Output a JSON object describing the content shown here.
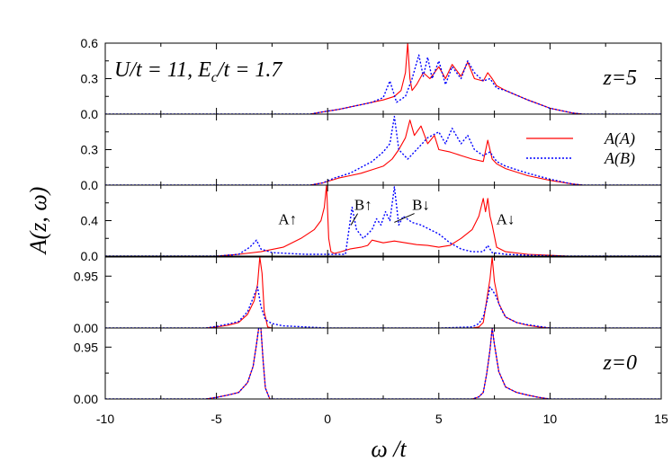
{
  "chart_data": {
    "type": "line",
    "xlabel": "ω /t",
    "ylabel": "A(z, ω)",
    "xlim": [
      -10,
      15
    ],
    "x_ticks": [
      -10,
      -5,
      0,
      5,
      10,
      15
    ],
    "x_tick_labels": [
      "-10",
      "-5",
      "0",
      "5",
      "10",
      "15"
    ],
    "annotation_params": "U/t = 11, E",
    "annotation_params_sub": "c",
    "annotation_params_tail": "/t = 1.7",
    "legend": {
      "placement": "top-right of second panel",
      "entries": [
        {
          "label": "A(A)",
          "color": "#ff0000",
          "style": "solid"
        },
        {
          "label": "A(B)",
          "color": "#0000ff",
          "style": "dotted"
        }
      ]
    },
    "panels": [
      {
        "id": "z5",
        "label": "z=5",
        "ylim": [
          0,
          0.6
        ],
        "y_ticks": [
          0.0,
          0.3,
          0.6
        ],
        "y_tick_labels": [
          "0.0",
          "0.3",
          "0.6"
        ],
        "series": [
          {
            "name": "A(A)",
            "color": "#ff0000",
            "x": [
              -10,
              -0.8,
              -0.2,
              0.5,
              1,
              1.5,
              2,
              2.5,
              3,
              3.3,
              3.5,
              3.6,
              3.7,
              3.8,
              4,
              4.3,
              4.6,
              5,
              5.3,
              5.6,
              6,
              6.3,
              6.6,
              7,
              7.2,
              7.4,
              7.6,
              8,
              9,
              10,
              11,
              11.5,
              15
            ],
            "y": [
              0,
              0,
              0.02,
              0.04,
              0.06,
              0.08,
              0.1,
              0.12,
              0.15,
              0.2,
              0.35,
              0.6,
              0.3,
              0.2,
              0.25,
              0.35,
              0.3,
              0.4,
              0.3,
              0.42,
              0.32,
              0.44,
              0.3,
              0.28,
              0.35,
              0.3,
              0.24,
              0.2,
              0.12,
              0.05,
              0.01,
              0,
              0
            ]
          },
          {
            "name": "A(B)",
            "color": "#0000ff",
            "x": [
              -10,
              -0.8,
              -0.2,
              0.5,
              1,
              1.5,
              2,
              2.5,
              2.8,
              3.1,
              3.5,
              3.8,
              4.1,
              4.3,
              4.5,
              4.7,
              5,
              5.3,
              5.6,
              6,
              6.3,
              6.6,
              7,
              7.3,
              7.6,
              8,
              9,
              10,
              11,
              11.5,
              15
            ],
            "y": [
              0,
              0,
              0.02,
              0.04,
              0.06,
              0.08,
              0.1,
              0.14,
              0.28,
              0.1,
              0.15,
              0.3,
              0.5,
              0.32,
              0.48,
              0.3,
              0.45,
              0.25,
              0.4,
              0.3,
              0.45,
              0.35,
              0.28,
              0.3,
              0.22,
              0.2,
              0.12,
              0.05,
              0.01,
              0,
              0
            ]
          }
        ]
      },
      {
        "id": "z4",
        "label": "",
        "ylim": [
          0,
          0.6
        ],
        "y_ticks": [
          0.0,
          0.3
        ],
        "y_tick_labels": [
          "0.0",
          "0.3"
        ],
        "series": [
          {
            "name": "A(A)",
            "color": "#ff0000",
            "x": [
              -10,
              -0.8,
              -0.2,
              0.5,
              1,
              1.5,
              2,
              2.5,
              2.9,
              3.2,
              3.5,
              3.7,
              3.9,
              4.2,
              4.5,
              4.8,
              5,
              5.5,
              6,
              6.5,
              7,
              7.2,
              7.4,
              7.6,
              8,
              9,
              10,
              11,
              11.5,
              15
            ],
            "y": [
              0,
              0,
              0.02,
              0.06,
              0.08,
              0.1,
              0.13,
              0.16,
              0.22,
              0.3,
              0.4,
              0.55,
              0.42,
              0.5,
              0.35,
              0.42,
              0.3,
              0.28,
              0.25,
              0.22,
              0.2,
              0.38,
              0.22,
              0.18,
              0.14,
              0.08,
              0.04,
              0.01,
              0,
              0
            ]
          },
          {
            "name": "A(B)",
            "color": "#0000ff",
            "x": [
              -10,
              -0.8,
              -0.2,
              0.3,
              1,
              1.5,
              2,
              2.5,
              2.8,
              3,
              3.2,
              3.6,
              4,
              4.5,
              5,
              5.3,
              5.6,
              6,
              6.3,
              6.6,
              7,
              7.3,
              7.6,
              8,
              9,
              10,
              11,
              11.5,
              15
            ],
            "y": [
              0,
              0,
              0.02,
              0.06,
              0.1,
              0.15,
              0.2,
              0.28,
              0.35,
              0.58,
              0.3,
              0.22,
              0.3,
              0.4,
              0.45,
              0.35,
              0.48,
              0.35,
              0.42,
              0.3,
              0.25,
              0.28,
              0.2,
              0.16,
              0.1,
              0.05,
              0.01,
              0,
              0
            ]
          }
        ]
      },
      {
        "id": "z2",
        "label": "",
        "ylim": [
          0,
          0.8
        ],
        "y_ticks": [
          0.0,
          0.4
        ],
        "y_tick_labels": [
          "0.0",
          "0.4"
        ],
        "annotations": [
          {
            "text": "A↑",
            "x": -1.8,
            "y": 0.42
          },
          {
            "text": "B↑",
            "x": 1.6,
            "y": 0.58
          },
          {
            "text": "B↓",
            "x": 4.2,
            "y": 0.58
          },
          {
            "text": "A↓",
            "x": 8.0,
            "y": 0.42
          }
        ],
        "series": [
          {
            "name": "A(A)",
            "color": "#ff0000",
            "x": [
              -10,
              -5,
              -4,
              -3,
              -2,
              -1.2,
              -0.6,
              -0.3,
              -0.15,
              -0.05,
              0.05,
              0.15,
              0.3,
              0.6,
              1,
              1.5,
              1.8,
              2,
              2.5,
              3,
              3.5,
              4,
              4.5,
              5,
              5.5,
              6,
              6.5,
              6.8,
              7,
              7.1,
              7.2,
              7.3,
              7.4,
              7.6,
              8,
              9,
              10,
              10.8,
              15
            ],
            "y": [
              0,
              0,
              0.02,
              0.05,
              0.1,
              0.2,
              0.3,
              0.4,
              0.55,
              0.8,
              0.2,
              0.05,
              0.03,
              0.05,
              0.08,
              0.1,
              0.12,
              0.18,
              0.15,
              0.17,
              0.15,
              0.13,
              0.12,
              0.1,
              0.12,
              0.2,
              0.3,
              0.45,
              0.65,
              0.5,
              0.65,
              0.45,
              0.35,
              0.1,
              0.05,
              0.02,
              0.01,
              0,
              0
            ]
          },
          {
            "name": "A(B)",
            "color": "#0000ff",
            "x": [
              -10,
              -5,
              -4,
              -3.5,
              -3.2,
              -3,
              -2.5,
              -1,
              0.8,
              1.1,
              1.3,
              1.6,
              2,
              2.2,
              2.4,
              2.6,
              2.8,
              3,
              3.2,
              3.4,
              3.8,
              4.2,
              4.6,
              5,
              5.5,
              6,
              6.5,
              7,
              7.2,
              7.4,
              8,
              9,
              10,
              10.8,
              15
            ],
            "y": [
              0,
              0,
              0.02,
              0.1,
              0.18,
              0.08,
              0.04,
              0.02,
              0.02,
              0.55,
              0.3,
              0.2,
              0.3,
              0.42,
              0.35,
              0.5,
              0.4,
              0.78,
              0.35,
              0.45,
              0.38,
              0.35,
              0.3,
              0.25,
              0.15,
              0.08,
              0.05,
              0.05,
              0.12,
              0.04,
              0.02,
              0.01,
              0.005,
              0,
              0
            ]
          }
        ]
      },
      {
        "id": "z1",
        "label": "",
        "ylim": [
          0,
          1.3
        ],
        "y_ticks": [
          0.0,
          0.95
        ],
        "y_tick_labels": [
          "0.00",
          "0.95"
        ],
        "series": [
          {
            "name": "A(A)",
            "color": "#ff0000",
            "x": [
              -10,
              -5.5,
              -5,
              -4.5,
              -4,
              -3.6,
              -3.3,
              -3.15,
              -3.05,
              -2.95,
              -2.85,
              -2.7,
              -2.5,
              0,
              5,
              6.5,
              6.8,
              7,
              7.15,
              7.3,
              7.4,
              7.5,
              7.7,
              8,
              8.5,
              9,
              9.5,
              10,
              15
            ],
            "y": [
              0,
              0,
              0.02,
              0.05,
              0.1,
              0.25,
              0.5,
              0.8,
              1.3,
              1.0,
              0.3,
              0.02,
              0,
              0,
              0,
              0,
              0.02,
              0.1,
              0.5,
              0.9,
              1.3,
              0.85,
              0.45,
              0.2,
              0.1,
              0.05,
              0.02,
              0,
              0
            ]
          },
          {
            "name": "A(B)",
            "color": "#0000ff",
            "x": [
              -10,
              -5.5,
              -5,
              -4.5,
              -4,
              -3.6,
              -3.3,
              -3.15,
              -3,
              -2.8,
              -2.5,
              -2,
              -1,
              0,
              5,
              6.5,
              6.8,
              7,
              7.15,
              7.3,
              7.4,
              7.55,
              7.8,
              8,
              8.5,
              9,
              9.5,
              10,
              15
            ],
            "y": [
              0,
              0,
              0.03,
              0.07,
              0.12,
              0.3,
              0.6,
              0.75,
              0.4,
              0.15,
              0.08,
              0.04,
              0.02,
              0,
              0,
              0.02,
              0.08,
              0.2,
              0.45,
              0.75,
              0.7,
              0.6,
              0.35,
              0.2,
              0.1,
              0.06,
              0.03,
              0,
              0
            ]
          }
        ]
      },
      {
        "id": "z0",
        "label": "z=0",
        "ylim": [
          0,
          1.3
        ],
        "y_ticks": [
          0.0,
          0.95
        ],
        "y_tick_labels": [
          "0.00",
          "0.95"
        ],
        "series": [
          {
            "name": "A(A)",
            "color": "#ff0000",
            "x": [
              -10,
              -5.5,
              -5,
              -4.5,
              -4,
              -3.6,
              -3.35,
              -3.2,
              -3.1,
              -3.0,
              -2.9,
              -2.8,
              -2.6,
              0,
              5,
              6.5,
              6.8,
              7,
              7.15,
              7.3,
              7.4,
              7.5,
              7.7,
              8,
              8.5,
              9,
              9.5,
              10,
              15
            ],
            "y": [
              0,
              0,
              0.03,
              0.07,
              0.12,
              0.3,
              0.6,
              1.0,
              1.3,
              1.3,
              0.7,
              0.2,
              0,
              0,
              0,
              0,
              0.04,
              0.12,
              0.45,
              0.9,
              1.3,
              1.0,
              0.5,
              0.22,
              0.12,
              0.07,
              0.03,
              0,
              0
            ]
          },
          {
            "name": "A(B)",
            "color": "#0000ff",
            "x": [
              -10,
              -5.5,
              -5,
              -4.5,
              -4,
              -3.6,
              -3.35,
              -3.2,
              -3.1,
              -3.0,
              -2.9,
              -2.8,
              -2.6,
              0,
              5,
              6.5,
              6.8,
              7,
              7.15,
              7.3,
              7.4,
              7.5,
              7.7,
              8,
              8.5,
              9,
              9.5,
              10,
              15
            ],
            "y": [
              0,
              0,
              0.03,
              0.07,
              0.12,
              0.3,
              0.6,
              1.0,
              1.3,
              1.3,
              0.7,
              0.2,
              0,
              0,
              0,
              0,
              0.04,
              0.12,
              0.45,
              0.9,
              1.3,
              1.0,
              0.5,
              0.22,
              0.12,
              0.07,
              0.03,
              0,
              0
            ]
          }
        ]
      }
    ]
  }
}
